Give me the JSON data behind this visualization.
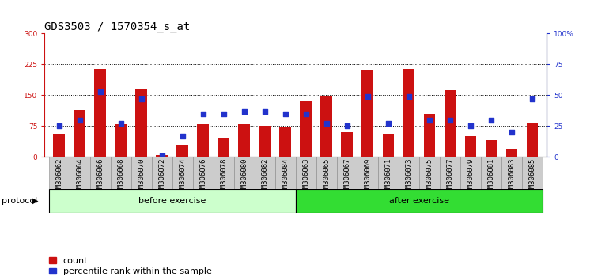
{
  "title": "GDS3503 / 1570354_s_at",
  "categories": [
    "GSM306062",
    "GSM306064",
    "GSM306066",
    "GSM306068",
    "GSM306070",
    "GSM306072",
    "GSM306074",
    "GSM306076",
    "GSM306078",
    "GSM306080",
    "GSM306082",
    "GSM306084",
    "GSM306063",
    "GSM306065",
    "GSM306067",
    "GSM306069",
    "GSM306071",
    "GSM306073",
    "GSM306075",
    "GSM306077",
    "GSM306079",
    "GSM306081",
    "GSM306083",
    "GSM306085"
  ],
  "red_bars": [
    55,
    115,
    215,
    80,
    165,
    5,
    30,
    80,
    45,
    80,
    75,
    72,
    135,
    148,
    60,
    210,
    55,
    215,
    105,
    163,
    50,
    40,
    20,
    82
  ],
  "blue_dots": [
    25,
    30,
    53,
    27,
    47,
    1,
    17,
    35,
    35,
    37,
    37,
    35,
    35,
    27,
    25,
    49,
    27,
    49,
    30,
    30,
    25,
    30,
    20,
    47
  ],
  "before_count": 12,
  "after_count": 12,
  "ylim_left": [
    0,
    300
  ],
  "ylim_right": [
    0,
    100
  ],
  "yticks_left": [
    0,
    75,
    150,
    225,
    300
  ],
  "yticks_right": [
    0,
    25,
    50,
    75,
    100
  ],
  "ytick_labels_left": [
    "0",
    "75",
    "150",
    "225",
    "300"
  ],
  "ytick_labels_right": [
    "0",
    "25",
    "50",
    "75",
    "100%"
  ],
  "bar_color": "#CC1111",
  "dot_color": "#2233CC",
  "before_color": "#CCFFCC",
  "after_color": "#33DD33",
  "tick_bg_color": "#CCCCCC",
  "before_label": "before exercise",
  "after_label": "after exercise",
  "protocol_label": "protocol",
  "legend_count": "count",
  "legend_pct": "percentile rank within the sample",
  "title_fontsize": 10,
  "tick_fontsize": 6.5,
  "label_fontsize": 8,
  "proto_fontsize": 8
}
